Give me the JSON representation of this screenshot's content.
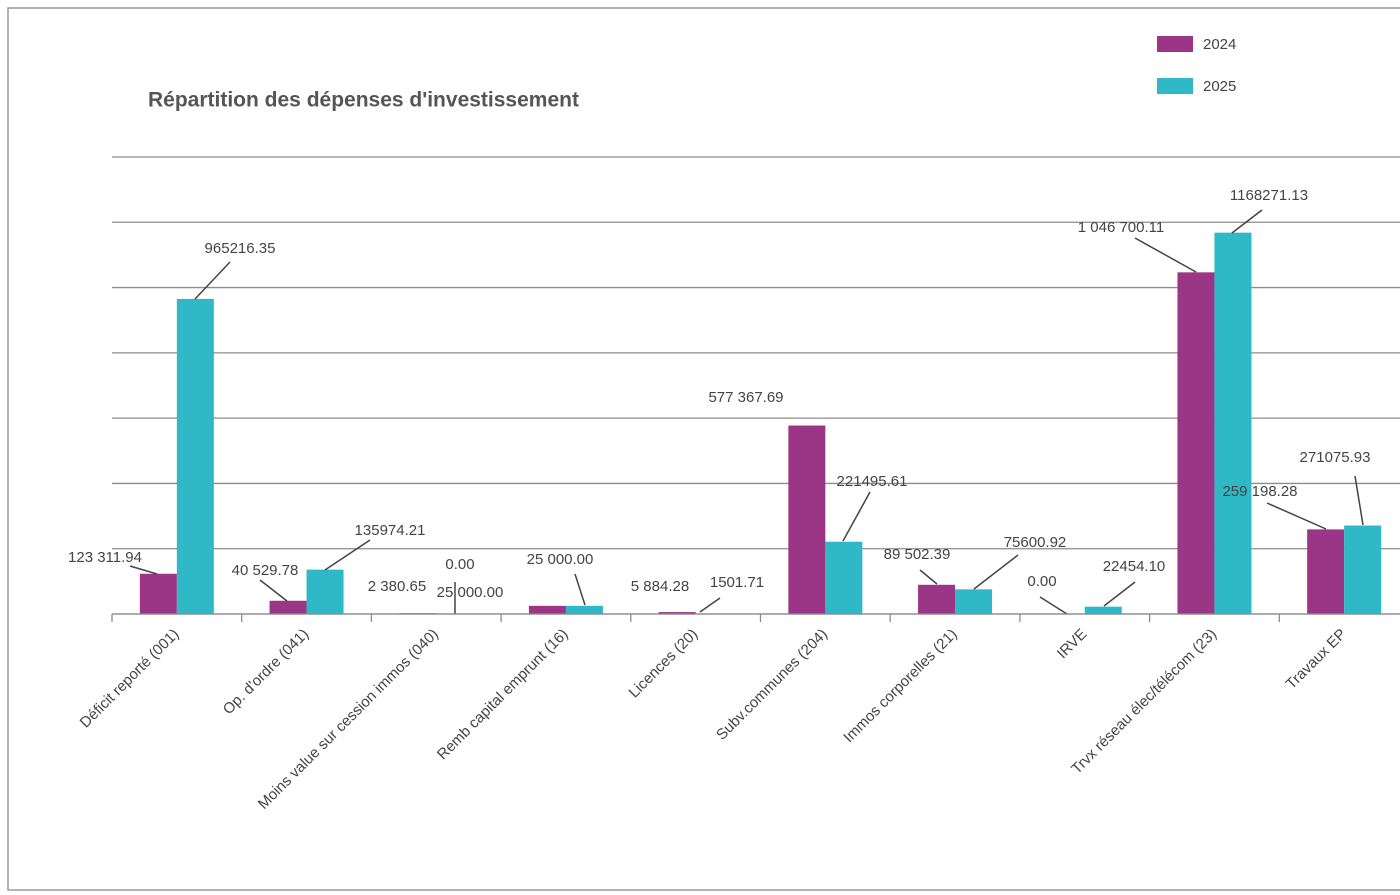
{
  "chart_data": {
    "type": "bar",
    "title": "Répartition des dépenses d'investissement",
    "categories": [
      "Déficit reporté (001)",
      "Op. d'ordre (041)",
      "Moins value sur cession immos (040)",
      "Remb capital emprunt (16)",
      "Licences (20)",
      "Subv.communes (204)",
      "Immos corporelles (21)",
      "IRVE",
      "Trvx réseau élec/télécom (23)",
      "Travaux EP"
    ],
    "series": [
      {
        "name": "2024",
        "color": "#9b3585",
        "values": [
          123311.94,
          40529.78,
          2380.65,
          25000,
          5884.28,
          577367.69,
          89502.39,
          0,
          1046700.11,
          259198.28
        ],
        "value_labels": [
          "123 311.94",
          "40 529.78",
          "2 380.65",
          "25 000.00",
          "5 884.28",
          "577 367.69",
          "89 502.39",
          "0.00",
          "1 046 700.11",
          "259 198.28"
        ]
      },
      {
        "name": "2025",
        "color": "#2fb8c6",
        "values": [
          965216.35,
          135974.21,
          0,
          25000,
          1501.71,
          221495.61,
          75600.92,
          22454.1,
          1168271.13,
          271075.93
        ],
        "value_labels": [
          "965216.35",
          "135974.21",
          "0.00",
          "25 000.00",
          "1501.71",
          "221495.61",
          "75600.92",
          "22454.10",
          "1168271.13",
          "271075.93"
        ]
      }
    ],
    "ylim": [
      0,
      1400000
    ],
    "yticks": [
      0,
      200000,
      400000,
      600000,
      800000,
      1000000,
      1200000,
      1400000
    ],
    "grid": true,
    "legend": "top-right"
  }
}
